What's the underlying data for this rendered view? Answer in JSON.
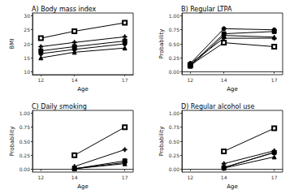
{
  "chart_data": [
    {
      "type": "line",
      "title": "A) Body mass index",
      "x_label": "Age",
      "y_label": "BMI",
      "x": [
        12,
        14,
        17
      ],
      "xlim": [
        11.5,
        17.5
      ],
      "xticks": [
        12,
        14,
        17
      ],
      "ylim": [
        9,
        31
      ],
      "yticks": [
        10,
        15,
        20,
        25,
        30
      ],
      "grid": true,
      "series": [
        {
          "marker": "open_square",
          "color": "#000000",
          "values": [
            22,
            24.5,
            27.5
          ]
        },
        {
          "marker": "plus",
          "color": "#000000",
          "values": [
            19,
            20.5,
            22.5
          ]
        },
        {
          "marker": "square",
          "color": "#000000",
          "values": [
            17.5,
            19,
            21
          ]
        },
        {
          "marker": "circle",
          "color": "#000000",
          "values": [
            16.5,
            18,
            20
          ]
        },
        {
          "marker": "triangle",
          "color": "#000000",
          "values": [
            15,
            17,
            18.5
          ]
        }
      ]
    },
    {
      "type": "line",
      "title": "B) Regular LTPA",
      "x_label": "Age",
      "y_label": "Probability",
      "x": [
        12,
        14,
        17
      ],
      "xlim": [
        11.5,
        17.5
      ],
      "xticks": [
        12,
        14,
        17
      ],
      "ylim": [
        -0.05,
        1.05
      ],
      "yticks": [
        {
          "value": 0,
          "label": "0.00"
        },
        0.25,
        {
          "value": 0.5,
          "label": "0.50"
        },
        0.75,
        {
          "value": 1,
          "label": "1.00"
        }
      ],
      "grid": true,
      "series": [
        {
          "marker": "open_square",
          "color": "#000000",
          "values": [
            0.12,
            0.52,
            0.45
          ]
        },
        {
          "marker": "plus",
          "color": "#000000",
          "values": [
            0.15,
            0.6,
            0.6
          ]
        },
        {
          "marker": "square",
          "color": "#000000",
          "values": [
            0.12,
            0.68,
            0.72
          ]
        },
        {
          "marker": "circle",
          "color": "#000000",
          "values": [
            0.15,
            0.77,
            0.75
          ]
        },
        {
          "marker": "triangle",
          "color": "#000000",
          "values": [
            0.1,
            0.65,
            0.62
          ]
        }
      ]
    },
    {
      "type": "line",
      "title": "C) Daily smoking",
      "x_label": "Age",
      "y_label": "Probability",
      "x": [
        12,
        14,
        17
      ],
      "xlim": [
        11.5,
        17.5
      ],
      "xticks": [
        12,
        14,
        17
      ],
      "ylim": [
        -0.05,
        1.05
      ],
      "yticks": [
        {
          "value": 0,
          "label": "0.00"
        },
        0.25,
        {
          "value": 0.5,
          "label": "0.50"
        },
        0.75,
        {
          "value": 1,
          "label": "1.00"
        }
      ],
      "grid": true,
      "series": [
        {
          "marker": "open_square",
          "color": "#000000",
          "values": [
            null,
            0.25,
            0.75
          ]
        },
        {
          "marker": "plus",
          "color": "#000000",
          "values": [
            null,
            0.05,
            0.35
          ]
        },
        {
          "marker": "square",
          "color": "#000000",
          "values": [
            null,
            0.01,
            0.15
          ]
        },
        {
          "marker": "circle",
          "color": "#000000",
          "values": [
            null,
            0.01,
            0.12
          ]
        },
        {
          "marker": "triangle",
          "color": "#000000",
          "values": [
            null,
            0.01,
            0.1
          ]
        }
      ]
    },
    {
      "type": "line",
      "title": "D) Regular alcohol use",
      "x_label": "Age",
      "y_label": "Probability",
      "x": [
        12,
        14,
        17
      ],
      "xlim": [
        11.5,
        17.5
      ],
      "xticks": [
        12,
        14,
        17
      ],
      "ylim": [
        -0.05,
        1.05
      ],
      "yticks": [
        {
          "value": 0,
          "label": "0.00"
        },
        0.25,
        {
          "value": 0.5,
          "label": "0.50"
        },
        0.75,
        {
          "value": 1,
          "label": "1.00"
        }
      ],
      "grid": true,
      "series": [
        {
          "marker": "open_square",
          "color": "#000000",
          "values": [
            null,
            0.32,
            0.73
          ]
        },
        {
          "marker": "plus",
          "color": "#000000",
          "values": [
            null,
            0.1,
            0.33
          ]
        },
        {
          "marker": "square",
          "color": "#000000",
          "values": [
            null,
            0.03,
            0.3
          ]
        },
        {
          "marker": "circle",
          "color": "#000000",
          "values": [
            null,
            0.03,
            0.3
          ]
        },
        {
          "marker": "triangle",
          "color": "#000000",
          "values": [
            null,
            0.02,
            0.22
          ]
        }
      ]
    }
  ]
}
